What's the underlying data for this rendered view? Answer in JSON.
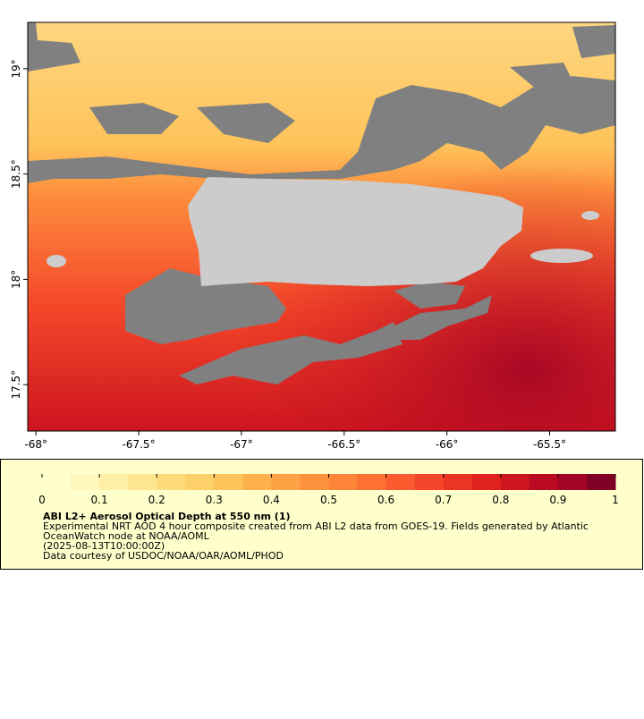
{
  "map": {
    "xlim": [
      -68.04,
      -65.18
    ],
    "ylim": [
      17.28,
      19.22
    ],
    "xticks": [
      {
        "value": -68,
        "label": "-68°"
      },
      {
        "value": -67.5,
        "label": "-67.5°"
      },
      {
        "value": -67,
        "label": "-67°"
      },
      {
        "value": -66.5,
        "label": "-66.5°"
      },
      {
        "value": -66,
        "label": "-66°"
      },
      {
        "value": -65.5,
        "label": "-65.5°"
      }
    ],
    "yticks": [
      {
        "value": 17.5,
        "label": "17.5°"
      },
      {
        "value": 18,
        "label": "18°"
      },
      {
        "value": 18.5,
        "label": "18.5°"
      },
      {
        "value": 19,
        "label": "19°"
      }
    ]
  },
  "colorbar": {
    "lim": [
      0,
      1
    ],
    "ticks": [
      0,
      0.1,
      0.2,
      0.3,
      0.4,
      0.5,
      0.6,
      0.7,
      0.8,
      0.9,
      1
    ],
    "colors": [
      "#ffffcc",
      "#fff7bc",
      "#ffefa6",
      "#fee690",
      "#fedc7c",
      "#fed06a",
      "#fec35a",
      "#feb24c",
      "#fea345",
      "#fd933f",
      "#fd8439",
      "#fc7034",
      "#fa5b2f",
      "#f4462a",
      "#ea3424",
      "#e0221e",
      "#cd151f",
      "#ba0a22",
      "#a30325",
      "#800026"
    ]
  },
  "caption": {
    "title": "ABI L2+ Aerosol Optical Depth at 550 nm (1)",
    "lines": [
      "Experimental NRT AOD 4 hour composite created from ABI L2 data from GOES-19. Fields generated by Atlantic",
      "OceanWatch node at NOAA/AOML",
      "(2025-08-13T10:00:00Z)",
      "Data courtesy of USDOC/NOAA/OAR/AOML/PHOD"
    ]
  }
}
